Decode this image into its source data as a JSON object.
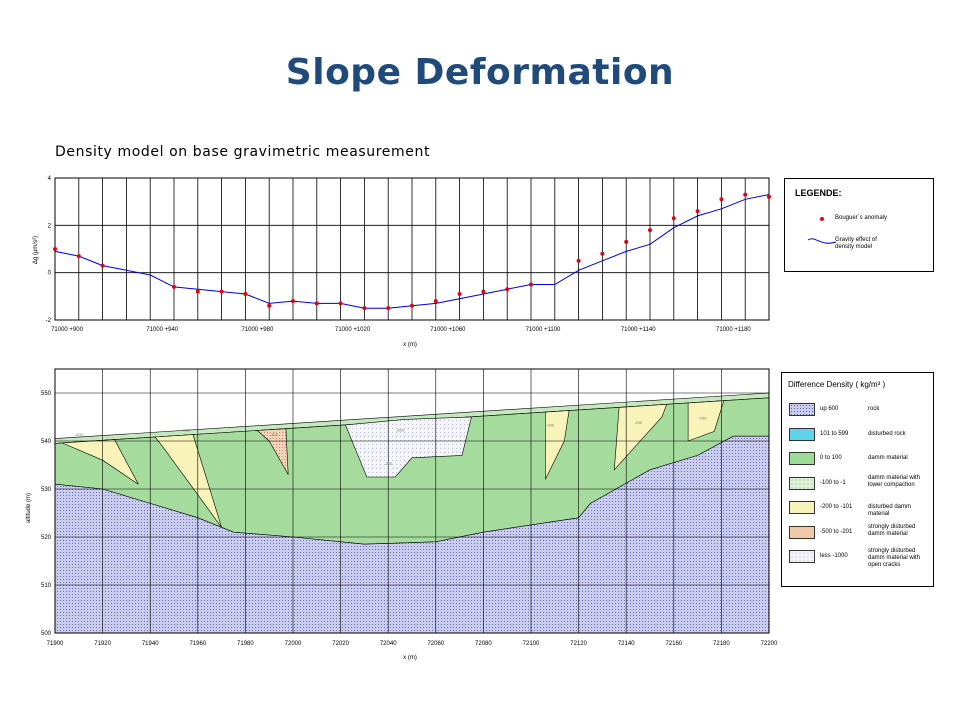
{
  "slide": {
    "title": "Slope Deformation"
  },
  "upper": {
    "title": "Density model on base gravimetric measurement"
  },
  "legend_upper": {
    "title": "LEGENDE:",
    "items": [
      {
        "label": "Bouguer`s anomaly",
        "color": "#e0001a"
      },
      {
        "label": "Gravity effect of density model",
        "color": "#0000cc"
      }
    ]
  },
  "legend_lower": {
    "title": "Difference Density ( kg/m³ )",
    "items": [
      {
        "range": "up 600",
        "desc": "rock",
        "fill": "#9ea3d6"
      },
      {
        "range": "101 to 599",
        "desc": "disturbed rock",
        "fill": "#5fd3e8"
      },
      {
        "range": "0 to 100",
        "desc": "damm material",
        "fill": "#9fdb98"
      },
      {
        "range": "-100 to -1",
        "desc": "damm material with lower compaction",
        "fill": "#d4ecc8"
      },
      {
        "range": "-200 to -101",
        "desc": "disturbed damm material",
        "fill": "#f8f3b8"
      },
      {
        "range": "-500 to -201",
        "desc": "strongly disturbed damm material",
        "fill": "#efc8a8"
      },
      {
        "range": "less -1000",
        "desc": "strongly disturbed damm material with open cracks",
        "fill": "#eceef4"
      }
    ]
  },
  "chart_data": [
    {
      "type": "scatter",
      "title": "Density model on base gravimetric measurement",
      "xlabel": "x (m)",
      "ylabel": "Δg (μm/s²)",
      "xlim": [
        71900,
        72200
      ],
      "ylim": [
        -2,
        4
      ],
      "x_tick_labels": [
        "71000 +900",
        "71000 +940",
        "71000 +980",
        "71000 +1020",
        "71000 +1060",
        "71000 +1100",
        "71000 +1140",
        "71000 +1180"
      ],
      "y_ticks": [
        -2,
        0,
        2,
        4
      ],
      "grid": true,
      "series": [
        {
          "name": "Bouguer`s anomaly",
          "x": [
            71900,
            71910,
            71920,
            71950,
            71960,
            71970,
            71980,
            71990,
            72000,
            72010,
            72020,
            72030,
            72040,
            72050,
            72060,
            72070,
            72080,
            72090,
            72100,
            72120,
            72130,
            72140,
            72150,
            72160,
            72170,
            72180,
            72190,
            72200
          ],
          "y": [
            1.0,
            0.7,
            0.3,
            -0.6,
            -0.8,
            -0.8,
            -0.9,
            -1.4,
            -1.2,
            -1.3,
            -1.3,
            -1.5,
            -1.5,
            -1.4,
            -1.2,
            -0.9,
            -0.8,
            -0.7,
            -0.5,
            0.5,
            0.8,
            1.3,
            1.8,
            2.3,
            2.6,
            3.1,
            3.3,
            3.2
          ]
        },
        {
          "name": "Gravity effect of density model",
          "x": [
            71900,
            71910,
            71920,
            71930,
            71940,
            71950,
            71960,
            71970,
            71980,
            71990,
            72000,
            72010,
            72020,
            72030,
            72040,
            72050,
            72060,
            72070,
            72080,
            72090,
            72100,
            72110,
            72120,
            72130,
            72140,
            72150,
            72160,
            72170,
            72180,
            72190,
            72200
          ],
          "y": [
            0.9,
            0.7,
            0.3,
            0.1,
            -0.1,
            -0.6,
            -0.7,
            -0.8,
            -0.9,
            -1.3,
            -1.2,
            -1.3,
            -1.3,
            -1.5,
            -1.5,
            -1.4,
            -1.3,
            -1.1,
            -0.9,
            -0.7,
            -0.5,
            -0.5,
            0.1,
            0.5,
            0.9,
            1.2,
            1.9,
            2.4,
            2.7,
            3.1,
            3.3
          ]
        }
      ]
    },
    {
      "type": "area",
      "title": "",
      "xlabel": "x (m)",
      "ylabel": "altitude (m)",
      "xlim": [
        71900,
        72200
      ],
      "ylim": [
        500,
        555
      ],
      "x_ticks": [
        71900,
        71920,
        71940,
        71960,
        71980,
        72000,
        72020,
        72040,
        72060,
        72080,
        72100,
        72120,
        72140,
        72160,
        72180,
        72200
      ],
      "y_ticks": [
        500,
        510,
        520,
        530,
        540,
        550
      ],
      "grid": true,
      "layers": [
        {
          "name": "surface (damm crest)",
          "x": [
            71900,
            72200
          ],
          "y": [
            540.5,
            550
          ]
        },
        {
          "name": "damm material top",
          "x": [
            71900,
            72200
          ],
          "y": [
            539.5,
            549
          ]
        },
        {
          "name": "rock surface",
          "x": [
            71900,
            71920,
            71940,
            71960,
            71975,
            72000,
            72020,
            72030,
            72060,
            72080,
            72120,
            72125,
            72150,
            72170,
            72185,
            72200
          ],
          "y": [
            531,
            530,
            527,
            524,
            521,
            520,
            519,
            518.5,
            519,
            521,
            524,
            527,
            534,
            537,
            541,
            541
          ]
        }
      ],
      "zone_labels": [
        "-200",
        "-200",
        "-300",
        "-200",
        "-200",
        "-200",
        "-200",
        "-200"
      ]
    }
  ]
}
